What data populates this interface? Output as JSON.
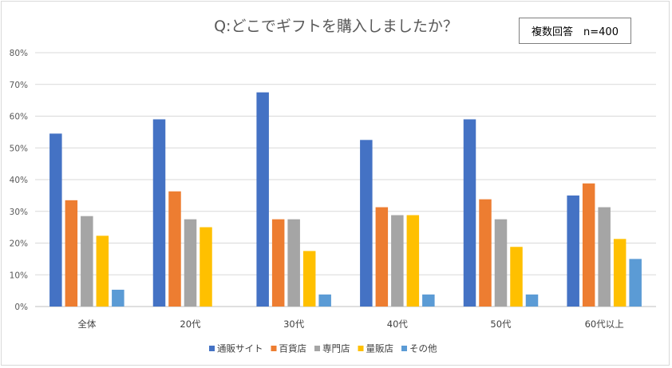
{
  "chart_data": {
    "type": "bar",
    "title": "Q:どこでギフトを購入しましたか？",
    "annotation": "複数回答　n=400",
    "xlabel": "",
    "ylabel": "",
    "ylim": [
      0,
      80
    ],
    "y_tick_labels": [
      "0%",
      "10%",
      "20%",
      "30%",
      "40%",
      "50%",
      "60%",
      "70%",
      "80%"
    ],
    "grid": true,
    "legend_position": "bottom",
    "categories": [
      "全体",
      "20代",
      "30代",
      "40代",
      "50代",
      "60代以上"
    ],
    "series": [
      {
        "name": "通販サイト",
        "color": "#4472c4",
        "values": [
          54.5,
          59,
          67.5,
          52.5,
          59,
          35
        ]
      },
      {
        "name": "百貨店",
        "color": "#ed7d31",
        "values": [
          33.5,
          36.3,
          27.5,
          31.3,
          33.8,
          38.8
        ]
      },
      {
        "name": "専門店",
        "color": "#a5a5a5",
        "values": [
          28.5,
          27.5,
          27.5,
          28.8,
          27.5,
          31.3
        ]
      },
      {
        "name": "量販店",
        "color": "#ffc000",
        "values": [
          22.3,
          25,
          17.5,
          28.8,
          18.8,
          21.3
        ]
      },
      {
        "name": "その他",
        "color": "#5b9bd5",
        "values": [
          5.3,
          0,
          3.8,
          3.8,
          3.8,
          15
        ]
      }
    ]
  }
}
